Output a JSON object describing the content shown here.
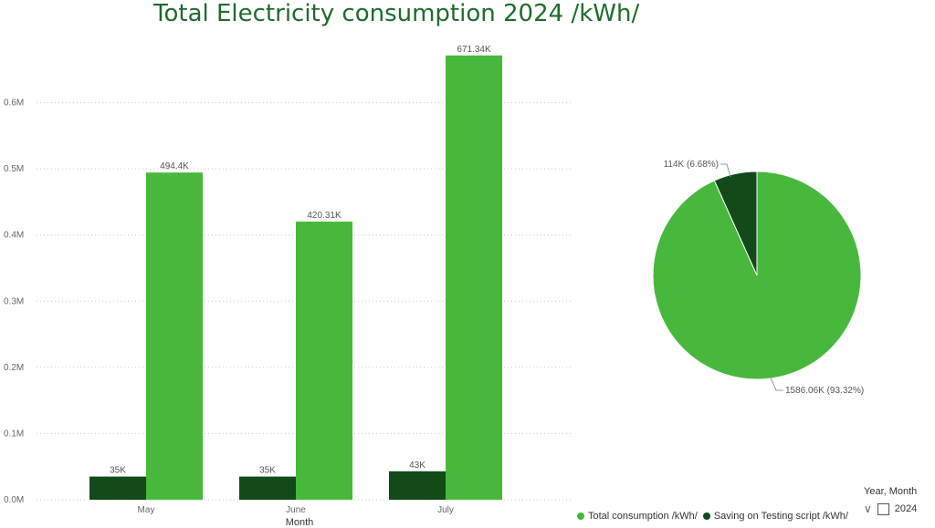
{
  "title": "Total Electricity consumption 2024 /kWh/",
  "chart_data": [
    {
      "type": "bar",
      "categories": [
        "May",
        "June",
        "July"
      ],
      "series": [
        {
          "name": "Saving on Testing script /kWh/",
          "values": [
            35000,
            35000,
            43000
          ],
          "labels": [
            "35K",
            "35K",
            "43K"
          ],
          "color": "#124a19"
        },
        {
          "name": "Total consumption /kWh/",
          "values": [
            494400,
            420310,
            671340
          ],
          "labels": [
            "494.4K",
            "420.31K",
            "671.34K"
          ],
          "color": "#47b83c"
        }
      ],
      "xlabel": "Month",
      "ylabel": "",
      "ylim": [
        0,
        700000
      ],
      "yticks": [
        0,
        100000,
        200000,
        300000,
        400000,
        500000,
        600000
      ],
      "ytick_labels": [
        "0.0M",
        "0.1M",
        "0.2M",
        "0.3M",
        "0.4M",
        "0.5M",
        "0.6M"
      ],
      "grid": true
    },
    {
      "type": "pie",
      "slices": [
        {
          "name": "Total consumption /kWh/",
          "value": 1586060,
          "percent": 93.32,
          "label": "1586.06K (93.32%)",
          "color": "#47b83c"
        },
        {
          "name": "Saving on Testing script /kWh/",
          "value": 114000,
          "percent": 6.68,
          "label": "114K (6.68%)",
          "color": "#124a19"
        }
      ],
      "legend": "bottom"
    }
  ],
  "legend": {
    "items": [
      {
        "label": "Total consumption /kWh/",
        "color": "#47b83c"
      },
      {
        "label": "Saving on Testing script /kWh/",
        "color": "#124a19"
      }
    ]
  },
  "slicer": {
    "title": "Year, Month",
    "option": "2024"
  }
}
